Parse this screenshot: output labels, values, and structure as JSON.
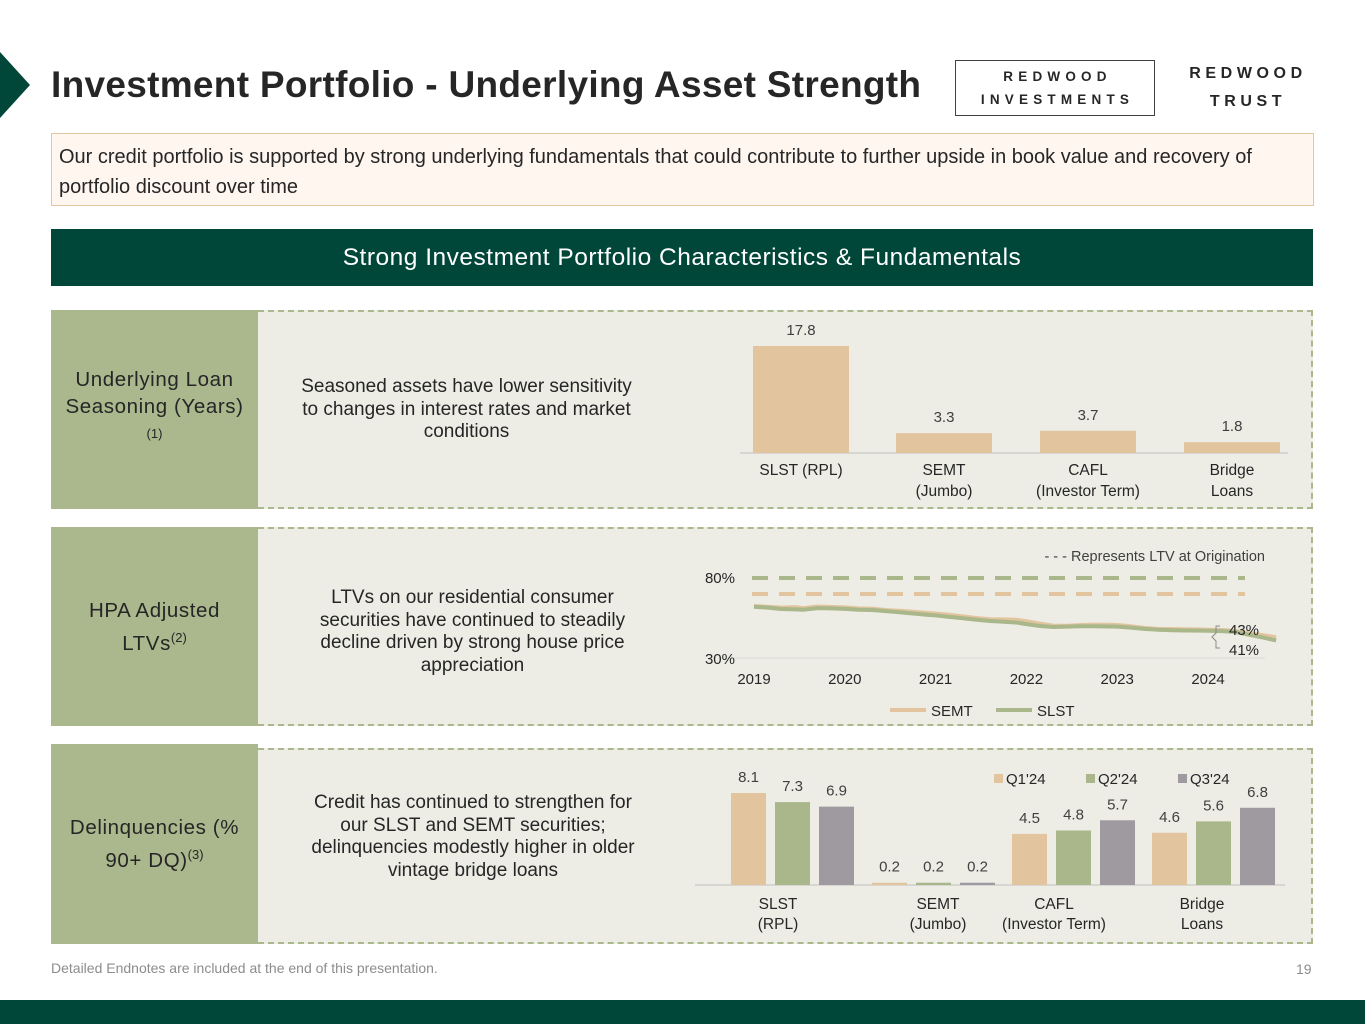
{
  "header": {
    "title": "Investment Portfolio - Underlying Asset Strength",
    "logo_ri_line1": "REDWOOD",
    "logo_ri_line2": "INVESTMENTS",
    "logo_rt_line1": "REDWOOD",
    "logo_rt_line2": "TRUST"
  },
  "intro": "Our credit portfolio is supported by strong underlying fundamentals that could contribute to further upside in book value and recovery of portfolio discount over time",
  "section_title": "Strong Investment Portfolio Characteristics & Fundamentals",
  "rows": [
    {
      "label": "Underlying Loan Seasoning (Years)",
      "sup": "(1)",
      "description": "Seasoned assets have lower sensitivity to changes in interest rates and market conditions"
    },
    {
      "label": "HPA Adjusted LTVs",
      "sup": "(2)",
      "description": "LTVs on our residential consumer securities have continued to steadily decline driven by strong house price appreciation"
    },
    {
      "label": "Delinquencies (% 90+ DQ)",
      "sup": "(3)",
      "description": "Credit has continued to strengthen for our SLST and SEMT securities; delinquencies modestly higher in older vintage bridge loans"
    }
  ],
  "colors": {
    "brand": "#00473A",
    "label_bg": "#ABB78D",
    "panel_bg": "#EDEDE6",
    "tan": "#E2C59E",
    "green": "#A9B78A",
    "gray": "#9E9A9F",
    "intro_bg": "#FEF6EF"
  },
  "chart_data": [
    {
      "type": "bar",
      "title": "Underlying Loan Seasoning (Years)",
      "categories": [
        "SLST (RPL)",
        "SEMT (Jumbo)",
        "CAFL (Investor Term)",
        "Bridge Loans"
      ],
      "category_lines": [
        [
          "SLST (RPL)"
        ],
        [
          "SEMT",
          "(Jumbo)"
        ],
        [
          "CAFL",
          "(Investor Term)"
        ],
        [
          "Bridge",
          "Loans"
        ]
      ],
      "values": [
        17.8,
        3.3,
        3.7,
        1.8
      ],
      "value_labels": [
        "17.8",
        "3.3",
        "3.7",
        "1.8"
      ],
      "ylim": [
        0,
        17.8
      ]
    },
    {
      "type": "line",
      "title": "HPA Adjusted LTVs",
      "x_ticks": [
        "2019",
        "2020",
        "2021",
        "2022",
        "2023",
        "2024"
      ],
      "x_range": [
        2019,
        2024.95
      ],
      "y_ticks": [
        "30%",
        "80%"
      ],
      "ylim": [
        30,
        80
      ],
      "note": "- - - Represents LTV at Origination",
      "series": [
        {
          "name": "SEMT",
          "color": "#E2C59E",
          "x": [
            2019.0,
            2019.15,
            2019.3,
            2019.45,
            2019.55,
            2019.7,
            2019.85,
            2020.0,
            2020.15,
            2020.3,
            2020.45,
            2020.6,
            2020.75,
            2020.9,
            2021.0,
            2021.15,
            2021.3,
            2021.45,
            2021.6,
            2021.75,
            2021.9,
            2022.0,
            2022.15,
            2022.3,
            2022.45,
            2022.6,
            2022.75,
            2022.9,
            2023.0,
            2023.15,
            2023.3,
            2023.45,
            2023.6,
            2023.75,
            2023.9,
            2024.0,
            2024.15,
            2024.3,
            2024.45,
            2024.6,
            2024.75
          ],
          "values": [
            62.5,
            62,
            61.5,
            61.8,
            61.2,
            62.2,
            61.9,
            61.6,
            61,
            60.9,
            60,
            59.5,
            58.9,
            58.2,
            57.8,
            57,
            56,
            55,
            54.2,
            54.1,
            53.9,
            53,
            51.5,
            50.2,
            50.1,
            50.6,
            50.9,
            50.8,
            50.6,
            49.8,
            48.8,
            48.2,
            48.1,
            48.0,
            47.9,
            47.7,
            47.5,
            47.0,
            45.5,
            44.3,
            43
          ]
        },
        {
          "name": "SLST",
          "color": "#A9B78A",
          "x": [
            2019.0,
            2019.15,
            2019.3,
            2019.45,
            2019.55,
            2019.7,
            2019.85,
            2020.0,
            2020.15,
            2020.3,
            2020.45,
            2020.6,
            2020.75,
            2020.9,
            2021.0,
            2021.15,
            2021.3,
            2021.45,
            2021.6,
            2021.75,
            2021.9,
            2022.0,
            2022.15,
            2022.3,
            2022.45,
            2022.6,
            2022.75,
            2022.9,
            2023.0,
            2023.15,
            2023.3,
            2023.45,
            2023.6,
            2023.75,
            2023.9,
            2024.0,
            2024.15,
            2024.3,
            2024.45,
            2024.6,
            2024.75
          ],
          "values": [
            62,
            61.5,
            60.6,
            60.4,
            60.2,
            61.2,
            61,
            60.7,
            60.2,
            60,
            59.3,
            58.6,
            57.8,
            57,
            56.6,
            55.7,
            54.8,
            53.9,
            53.1,
            52.6,
            52.1,
            51.2,
            50.0,
            49.4,
            49.6,
            49.8,
            49.8,
            49.7,
            49.6,
            49.0,
            48.2,
            47.6,
            47.4,
            47.2,
            47.1,
            47.0,
            46.8,
            46.3,
            44.5,
            42.9,
            41
          ]
        }
      ],
      "origination": [
        {
          "name": "SLST",
          "value": 80,
          "color": "#A9B78A"
        },
        {
          "name": "SEMT",
          "value": 70,
          "color": "#E2C59E"
        }
      ],
      "end_labels": [
        "43%",
        "41%"
      ]
    },
    {
      "type": "bar",
      "title": "Delinquencies (% 90+ DQ)",
      "categories": [
        "SLST (RPL)",
        "SEMT (Jumbo)",
        "CAFL (Investor Term)",
        "Bridge Loans"
      ],
      "category_lines": [
        [
          "SLST",
          "(RPL)"
        ],
        [
          "SEMT",
          "(Jumbo)"
        ],
        [
          "CAFL",
          "(Investor Term)"
        ],
        [
          "Bridge",
          "Loans"
        ]
      ],
      "series": [
        {
          "name": "Q1'24",
          "color": "#E2C59E",
          "values": [
            8.1,
            0.2,
            4.5,
            4.6
          ],
          "labels": [
            "8.1",
            "0.2",
            "4.5",
            "4.6"
          ]
        },
        {
          "name": "Q2'24",
          "color": "#A9B78A",
          "values": [
            7.3,
            0.2,
            4.8,
            5.6
          ],
          "labels": [
            "7.3",
            "0.2",
            "4.8",
            "5.6"
          ]
        },
        {
          "name": "Q3'24",
          "color": "#9E9A9F",
          "values": [
            6.9,
            0.2,
            5.7,
            6.8
          ],
          "labels": [
            "6.9",
            "0.2",
            "5.7",
            "6.8"
          ]
        }
      ],
      "ylim": [
        0,
        8.1
      ]
    }
  ],
  "footer": {
    "note": "Detailed Endnotes are included at the end of this presentation.",
    "page": "19"
  }
}
